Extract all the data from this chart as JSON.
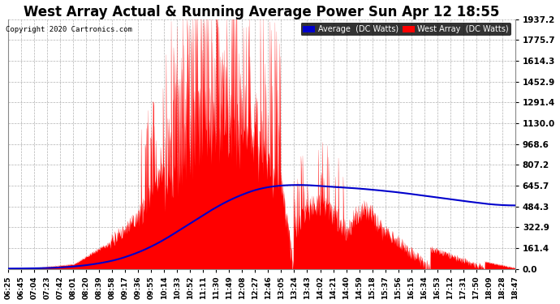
{
  "title": "West Array Actual & Running Average Power Sun Apr 12 18:55",
  "copyright": "Copyright 2020 Cartronics.com",
  "yticks": [
    0.0,
    161.4,
    322.9,
    484.3,
    645.7,
    807.2,
    968.6,
    1130.0,
    1291.4,
    1452.9,
    1614.3,
    1775.7,
    1937.2
  ],
  "ylim": [
    0,
    1937.2
  ],
  "bg_color": "#ffffff",
  "grid_color": "#aaaaaa",
  "west_array_color": "#ff0000",
  "average_color": "#0000cc",
  "title_fontsize": 12,
  "legend_labels": [
    "Average  (DC Watts)",
    "West Array  (DC Watts)"
  ],
  "xtick_labels": [
    "06:25",
    "06:45",
    "07:04",
    "07:23",
    "07:42",
    "08:01",
    "08:20",
    "08:39",
    "08:58",
    "09:17",
    "09:36",
    "09:55",
    "10:14",
    "10:33",
    "10:52",
    "11:11",
    "11:30",
    "11:49",
    "12:08",
    "12:27",
    "12:46",
    "13:05",
    "13:24",
    "13:43",
    "14:02",
    "14:21",
    "14:40",
    "14:59",
    "15:18",
    "15:37",
    "15:56",
    "16:15",
    "16:34",
    "16:53",
    "17:12",
    "17:31",
    "17:50",
    "18:09",
    "18:28",
    "18:47"
  ],
  "n_minutes": 745
}
